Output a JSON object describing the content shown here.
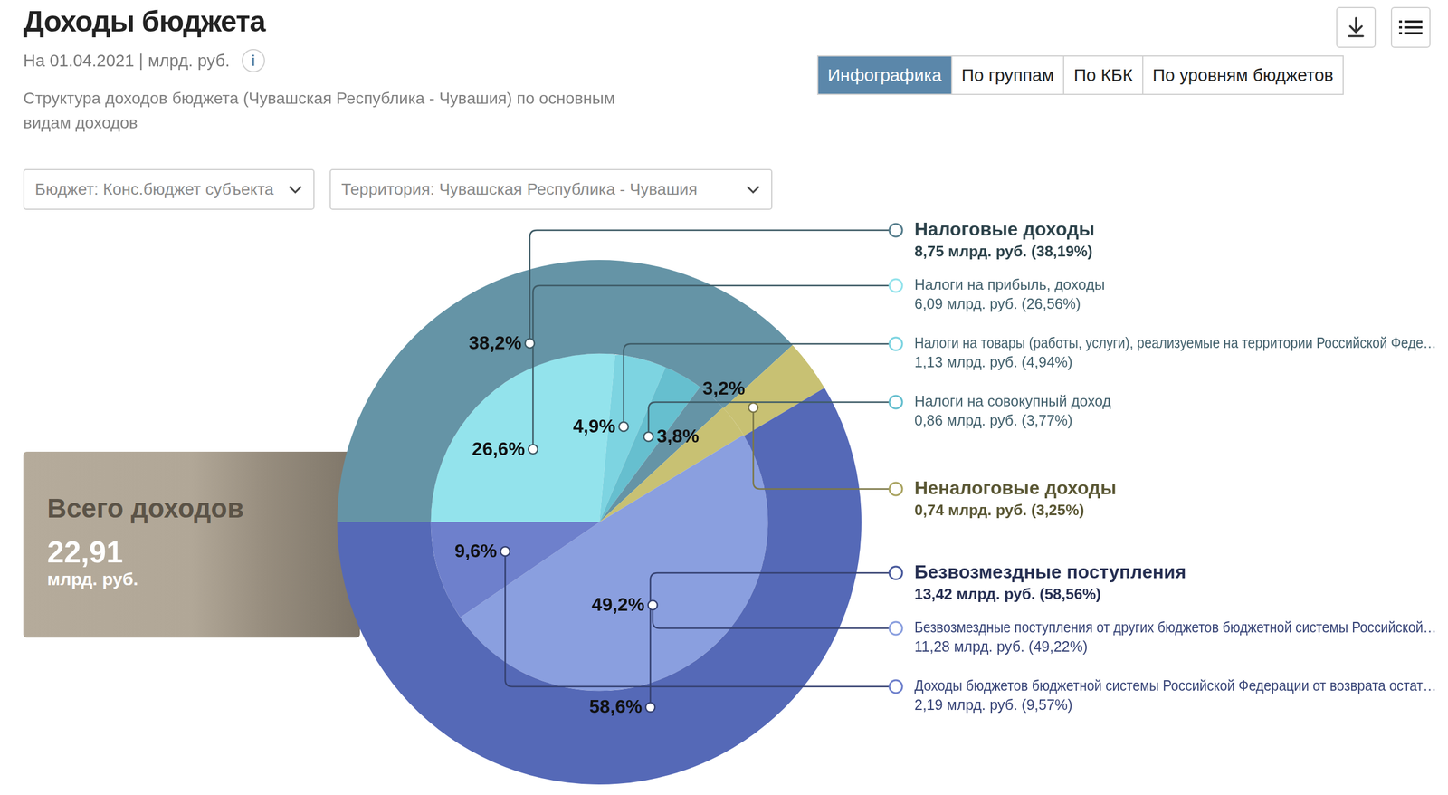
{
  "header": {
    "title": "Доходы бюджета",
    "subtitle": "На 01.04.2021 | млрд. руб.",
    "info": "i",
    "description": "Структура доходов бюджета (Чувашская Республика - Чувашия) по основным видам доходов",
    "tabs": [
      "Инфографика",
      "По группам",
      "По КБК",
      "По уровням бюджетов"
    ],
    "active_tab": "Инфографика",
    "filters": [
      "Бюджет: Конс.бюджет субъекта",
      "Территория: Чувашская Республика - Чувашия"
    ]
  },
  "total": {
    "label": "Всего доходов",
    "value": "22,91",
    "unit": "млрд. руб."
  },
  "chart_data": {
    "type": "pie",
    "data_labels": true,
    "legend": "right",
    "groups": [
      {
        "name": "Налоговые доходы",
        "detail": "8,75 млрд. руб. (38,19%)",
        "value": 38.19,
        "value_label": "38,2%",
        "color": "#6594a6",
        "children": [
          {
            "name": "Налоги на прибыль, доходы",
            "detail": "6,09 млрд. руб. (26,56%)",
            "value": 26.56,
            "value_label": "26,6%",
            "color": "#93e3ec"
          },
          {
            "name": "Налоги на товары (работы, услуги), реализуемые на территории Российской Феде…",
            "detail": "1,13 млрд. руб. (4,94%)",
            "value": 4.94,
            "value_label": "4,9%",
            "color": "#7dd4e1"
          },
          {
            "name": "Налоги на совокупный доход",
            "detail": "0,86 млрд. руб. (3,77%)",
            "value": 3.77,
            "value_label": "3,8%",
            "color": "#66bfcf"
          }
        ]
      },
      {
        "name": "Неналоговые доходы",
        "detail": "0,74 млрд. руб. (3,25%)",
        "value": 3.25,
        "value_label": "3,2%",
        "color": "#c8c173"
      },
      {
        "name": "Безвозмездные поступления",
        "detail": "13,42 млрд. руб. (58,56%)",
        "value": 58.56,
        "value_label": "58,6%",
        "color": "#5569b7",
        "children": [
          {
            "name": "Безвозмездные поступления от других бюджетов бюджетной системы Российской…",
            "detail": "11,28 млрд. руб. (49,22%)",
            "value": 49.22,
            "value_label": "49,2%",
            "color": "#8a9fdf"
          },
          {
            "name": "Доходы бюджетов бюджетной системы Российской Федерации от возврата остат…",
            "detail": "2,19 млрд. руб. (9,57%)",
            "value": 9.57,
            "value_label": "9,6%",
            "color": "#6e80cc"
          }
        ]
      }
    ]
  }
}
